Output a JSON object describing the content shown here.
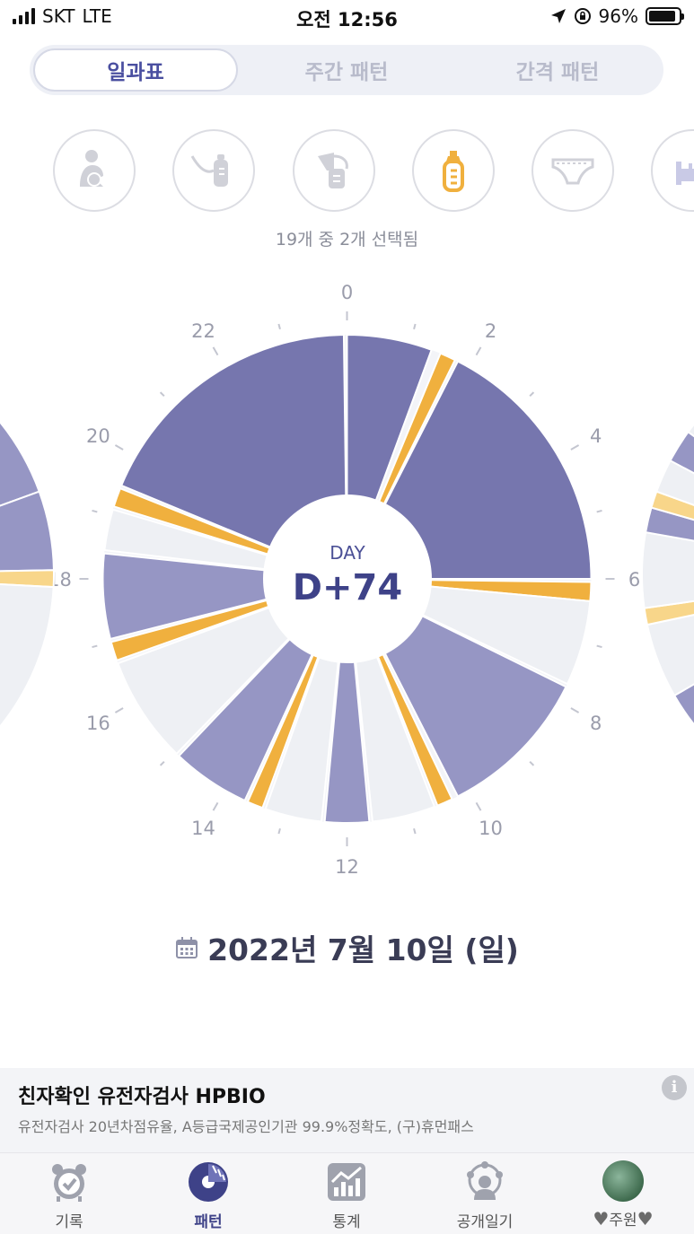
{
  "status_bar": {
    "carrier": "SKT",
    "network": "LTE",
    "time": "오전 12:56",
    "battery": "96%"
  },
  "segment": {
    "tabs": [
      "일과표",
      "주간 패턴",
      "간격 패턴"
    ],
    "active_index": 0
  },
  "categories": {
    "icons": [
      "nursing-icon",
      "breast-milk-bottle-icon",
      "breast-pump-icon",
      "formula-bottle-icon",
      "diaper-icon",
      "bed-icon"
    ],
    "selected": [
      "formula-bottle-icon"
    ],
    "selected_count_text": "19개 중 2개 선택됨"
  },
  "clock": {
    "hour_labels": [
      "0",
      "2",
      "4",
      "6",
      "8",
      "10",
      "12",
      "14",
      "16",
      "18",
      "20",
      "22"
    ],
    "center_label": "DAY",
    "center_value": "D+74",
    "colors": {
      "sleep_dark": "#7676ae",
      "sleep_light": "#9696c4",
      "feeding": "#f0b03e",
      "empty": "#eef0f4"
    },
    "segments": [
      {
        "type": "sleep",
        "start": 0.0,
        "end": 1.35,
        "color": "#7676ae"
      },
      {
        "type": "feeding",
        "start": 1.5,
        "end": 1.75,
        "color": "#f0b03e"
      },
      {
        "type": "sleep",
        "start": 1.8,
        "end": 6.0,
        "color": "#7676ae"
      },
      {
        "type": "feeding",
        "start": 6.05,
        "end": 6.35,
        "color": "#f0b03e"
      },
      {
        "type": "empty",
        "start": 6.35,
        "end": 7.7,
        "color": "#eef0f4"
      },
      {
        "type": "sleep",
        "start": 7.75,
        "end": 10.2,
        "color": "#9696c4"
      },
      {
        "type": "feeding",
        "start": 10.3,
        "end": 10.55,
        "color": "#f0b03e"
      },
      {
        "type": "empty",
        "start": 10.6,
        "end": 11.6,
        "color": "#eef0f4"
      },
      {
        "type": "sleep",
        "start": 11.65,
        "end": 12.35,
        "color": "#9696c4"
      },
      {
        "type": "empty",
        "start": 12.4,
        "end": 13.3,
        "color": "#eef0f4"
      },
      {
        "type": "feeding",
        "start": 13.35,
        "end": 13.6,
        "color": "#f0b03e"
      },
      {
        "type": "sleep",
        "start": 13.65,
        "end": 14.9,
        "color": "#9696c4"
      },
      {
        "type": "empty",
        "start": 14.95,
        "end": 16.65,
        "color": "#eef0f4"
      },
      {
        "type": "feeding",
        "start": 16.7,
        "end": 17.0,
        "color": "#f0b03e"
      },
      {
        "type": "sleep",
        "start": 17.05,
        "end": 18.4,
        "color": "#9696c4"
      },
      {
        "type": "empty",
        "start": 18.45,
        "end": 19.1,
        "color": "#eef0f4"
      },
      {
        "type": "feeding",
        "start": 19.15,
        "end": 19.45,
        "color": "#f0b03e"
      },
      {
        "type": "sleep",
        "start": 19.5,
        "end": 23.95,
        "color": "#7676ae"
      }
    ]
  },
  "date": {
    "text": "2022년 7월 10일 (일)"
  },
  "ad": {
    "title": "친자확인 유전자검사 HPBIO",
    "description": "유전자검사 20년차점유율, A등급국제공인기관 99.9%정확도, (구)휴먼패스",
    "info_symbol": "i"
  },
  "tabbar": {
    "tabs": [
      {
        "label": "기록",
        "icon": "alarm-clock-icon"
      },
      {
        "label": "패턴",
        "icon": "pattern-chart-icon"
      },
      {
        "label": "통계",
        "icon": "statistics-icon"
      },
      {
        "label": "공개일기",
        "icon": "public-diary-icon"
      },
      {
        "label": "주원",
        "icon": "avatar"
      }
    ],
    "active_index": 1,
    "profile_heart": "♥"
  }
}
